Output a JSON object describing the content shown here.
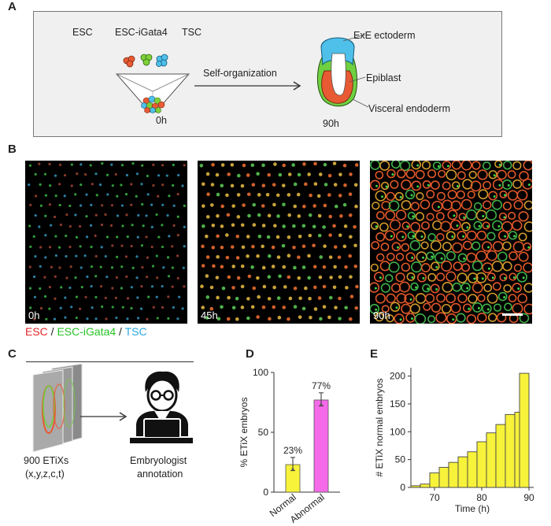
{
  "panels": {
    "a": "A",
    "b": "B",
    "c": "C",
    "d": "D",
    "e": "E"
  },
  "panel_a": {
    "cells": [
      "ESC",
      "ESC-iGata4",
      "TSC"
    ],
    "arrow_label": "Self-organization",
    "time_start": "0h",
    "time_end": "90h",
    "structures": [
      "ExE ectoderm",
      "Epiblast",
      "Visceral endoderm"
    ]
  },
  "panel_b": {
    "times": [
      "0h",
      "45h",
      "90h"
    ],
    "legend": [
      {
        "text": "ESC",
        "color": "#e8262a"
      },
      {
        "text": " / ",
        "color": "#222222"
      },
      {
        "text": "ESC-iGata4",
        "color": "#27c427"
      },
      {
        "text": " / ",
        "color": "#222222"
      },
      {
        "text": "TSC",
        "color": "#27a8e0"
      }
    ]
  },
  "panel_c": {
    "count_label": "900 ETiXs",
    "dims_label": "(x,y,z,c,t)",
    "annotation_line1": "Embryologist",
    "annotation_line2": "annotation"
  },
  "chart_data": [
    {
      "type": "bar",
      "panel": "D",
      "categories": [
        "Normal",
        "Abnormal"
      ],
      "values": [
        23,
        77
      ],
      "error_low": [
        18,
        72
      ],
      "error_high": [
        29,
        83
      ],
      "data_labels": [
        "23%",
        "77%"
      ],
      "colors": [
        "#f7f23a",
        "#f46ae9"
      ],
      "ylabel": "% ETiX embryos",
      "ylim": [
        0,
        100
      ],
      "yticks": [
        0,
        50,
        100
      ]
    },
    {
      "type": "bar",
      "panel": "E",
      "x": [
        66,
        68,
        70,
        72,
        74,
        76,
        78,
        80,
        82,
        84,
        86,
        88
      ],
      "values": [
        3,
        6,
        26,
        36,
        45,
        55,
        64,
        82,
        98,
        113,
        131,
        135
      ],
      "last_value": 205,
      "color": "#f7f23a",
      "xlabel": "Time (h)",
      "ylabel": "# ETiX normal embryos",
      "xticks": [
        70,
        80,
        90
      ],
      "yticks": [
        0,
        50,
        100,
        150,
        200
      ],
      "xlim": [
        65,
        91
      ],
      "ylim": [
        0,
        215
      ]
    }
  ]
}
